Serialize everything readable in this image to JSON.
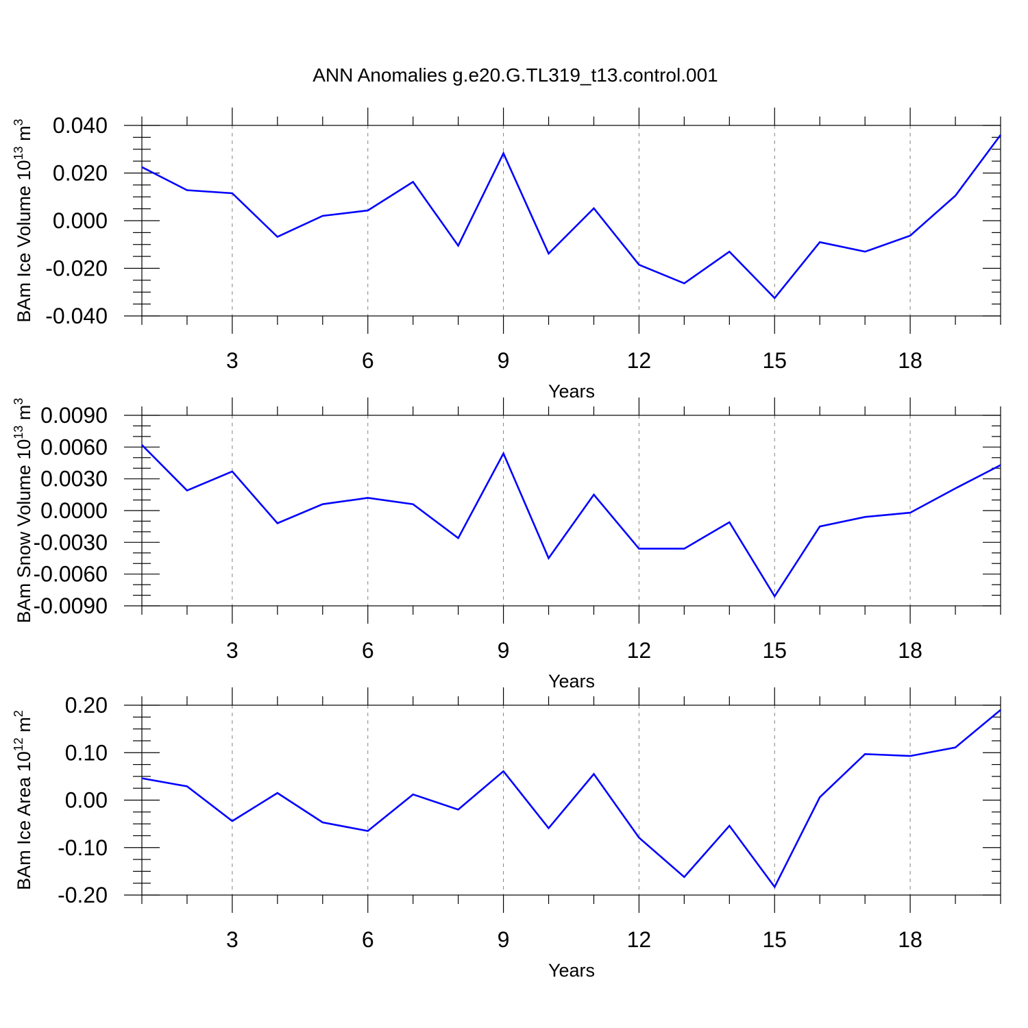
{
  "title": "ANN Anomalies g.e20.G.TL319_t13.control.001",
  "colors": {
    "line": "#0000ff",
    "grid": "#808080",
    "axis": "#000000"
  },
  "chart_data": [
    {
      "type": "line",
      "name": "ice-volume",
      "ylabel_main": "BAm Ice Volume 10",
      "ylabel_exp": "13",
      "ylabel_unit": "m",
      "ylabel_unit_exp": "3",
      "xlabel": "Years",
      "xlim": [
        1,
        20
      ],
      "ylim": [
        -0.04,
        0.04
      ],
      "xticks": [
        3,
        6,
        9,
        12,
        15,
        18
      ],
      "yticks": [
        -0.04,
        -0.02,
        0.0,
        0.02,
        0.04
      ],
      "ytick_labels": [
        "-0.040",
        "-0.020",
        "0.000",
        "0.020",
        "0.040"
      ],
      "y_minor_step": 0.005,
      "x": [
        1,
        2,
        3,
        4,
        5,
        6,
        7,
        8,
        9,
        10,
        11,
        12,
        13,
        14,
        15,
        16,
        17,
        18,
        19,
        20
      ],
      "values": [
        0.0225,
        0.0128,
        0.0115,
        -0.0068,
        0.002,
        0.0043,
        0.0163,
        -0.0105,
        0.0283,
        -0.0138,
        0.0052,
        -0.0185,
        -0.0263,
        -0.013,
        -0.0325,
        -0.009,
        -0.013,
        -0.0063,
        0.0105,
        0.036
      ]
    },
    {
      "type": "line",
      "name": "snow-volume",
      "ylabel_main": "BAm Snow Volume 10",
      "ylabel_exp": "13",
      "ylabel_unit": "m",
      "ylabel_unit_exp": "3",
      "xlabel": "Years",
      "xlim": [
        1,
        20
      ],
      "ylim": [
        -0.009,
        0.009
      ],
      "xticks": [
        3,
        6,
        9,
        12,
        15,
        18
      ],
      "yticks": [
        -0.009,
        -0.006,
        -0.003,
        0.0,
        0.003,
        0.006,
        0.009
      ],
      "ytick_labels": [
        "-0.0090",
        "-0.0060",
        "-0.0030",
        "0.0000",
        "0.0030",
        "0.0060",
        "0.0090"
      ],
      "y_minor_step": 0.001,
      "x": [
        1,
        2,
        3,
        4,
        5,
        6,
        7,
        8,
        9,
        10,
        11,
        12,
        13,
        14,
        15,
        16,
        17,
        18,
        19,
        20
      ],
      "values": [
        0.0062,
        0.0019,
        0.0037,
        -0.0012,
        0.0006,
        0.0012,
        0.0006,
        -0.0026,
        0.0054,
        -0.0045,
        0.0015,
        -0.0036,
        -0.0036,
        -0.0011,
        -0.0081,
        -0.0015,
        -0.0006,
        -0.0002,
        0.0021,
        0.0043
      ]
    },
    {
      "type": "line",
      "name": "ice-area",
      "ylabel_main": "BAm Ice Area 10",
      "ylabel_exp": "12",
      "ylabel_unit": "m",
      "ylabel_unit_exp": "2",
      "xlabel": "Years",
      "xlim": [
        1,
        20
      ],
      "ylim": [
        -0.2,
        0.2
      ],
      "xticks": [
        3,
        6,
        9,
        12,
        15,
        18
      ],
      "yticks": [
        -0.2,
        -0.1,
        0.0,
        0.1,
        0.2
      ],
      "ytick_labels": [
        "-0.20",
        "-0.10",
        "0.00",
        "0.10",
        "0.20"
      ],
      "y_minor_step": 0.025,
      "x": [
        1,
        2,
        3,
        4,
        5,
        6,
        7,
        8,
        9,
        10,
        11,
        12,
        13,
        14,
        15,
        16,
        17,
        18,
        19,
        20
      ],
      "values": [
        0.046,
        0.029,
        -0.044,
        0.015,
        -0.047,
        -0.065,
        0.012,
        -0.02,
        0.061,
        -0.059,
        0.055,
        -0.079,
        -0.162,
        -0.054,
        -0.183,
        0.006,
        0.097,
        0.093,
        0.111,
        0.19
      ]
    }
  ]
}
